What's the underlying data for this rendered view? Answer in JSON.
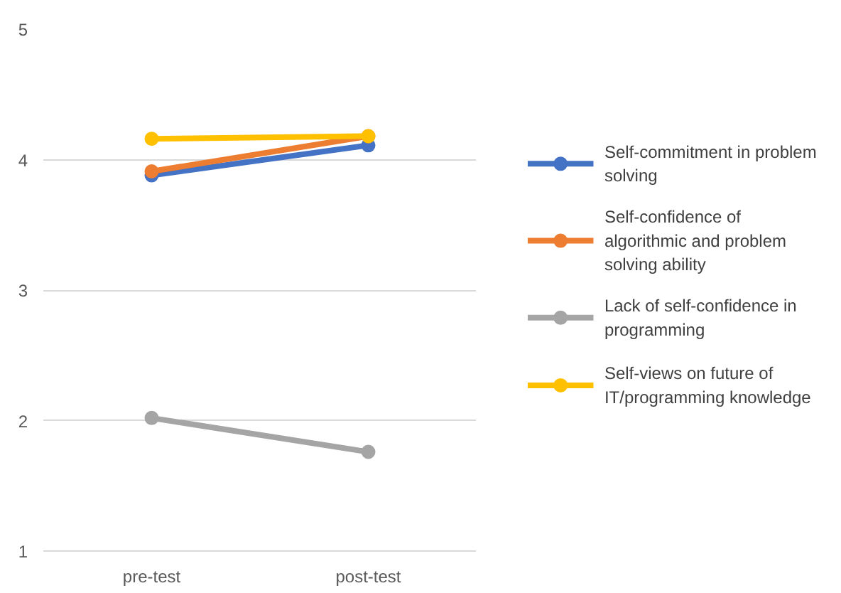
{
  "chart_data": {
    "type": "line",
    "categories": [
      "pre-test",
      "post-test"
    ],
    "series": [
      {
        "name": "Self-commitment in problem solving",
        "color": "#4472c4",
        "values": [
          3.88,
          4.11
        ]
      },
      {
        "name": "Self-confidence of algorithmic and problem solving ability",
        "color": "#ed7d31",
        "values": [
          3.91,
          4.18
        ]
      },
      {
        "name": "Lack of self-confidence in programming",
        "color": "#a5a5a5",
        "values": [
          2.02,
          1.76
        ]
      },
      {
        "name": "Self-views on future of IT/programming knowledge",
        "color": "#ffc000",
        "values": [
          4.16,
          4.18
        ]
      }
    ],
    "ylim": [
      1,
      5
    ],
    "yticks": [
      1,
      2,
      3,
      4,
      5
    ],
    "grid": "y",
    "legend": "right",
    "marker": "circle",
    "line_style": "solid"
  }
}
